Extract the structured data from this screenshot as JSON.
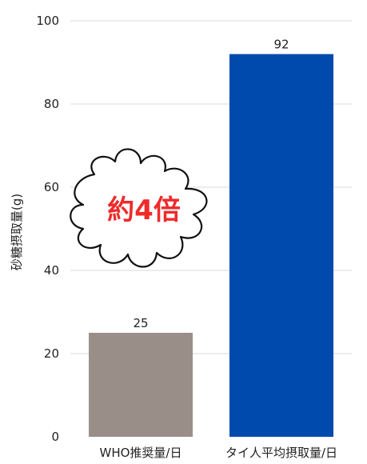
{
  "chart_data": {
    "type": "bar",
    "categories": [
      "WHO推奨量/日",
      "タイ人平均摂取量/日"
    ],
    "values": [
      25,
      92
    ],
    "data_labels": [
      "25",
      "92"
    ],
    "ylabel": "砂糖摂取量(g)",
    "ylim": [
      0,
      100
    ],
    "yticks": [
      "0",
      "20",
      "40",
      "60",
      "80",
      "100"
    ],
    "grid": true,
    "bar_colors": [
      "#9a8f88",
      "#004aad"
    ],
    "annotation": "約4倍"
  },
  "colors": {
    "grid": "#d9d9d9",
    "annotation_text": "#ee2b2b",
    "burst_fill": "#ffffff",
    "burst_stroke": "#111111"
  }
}
